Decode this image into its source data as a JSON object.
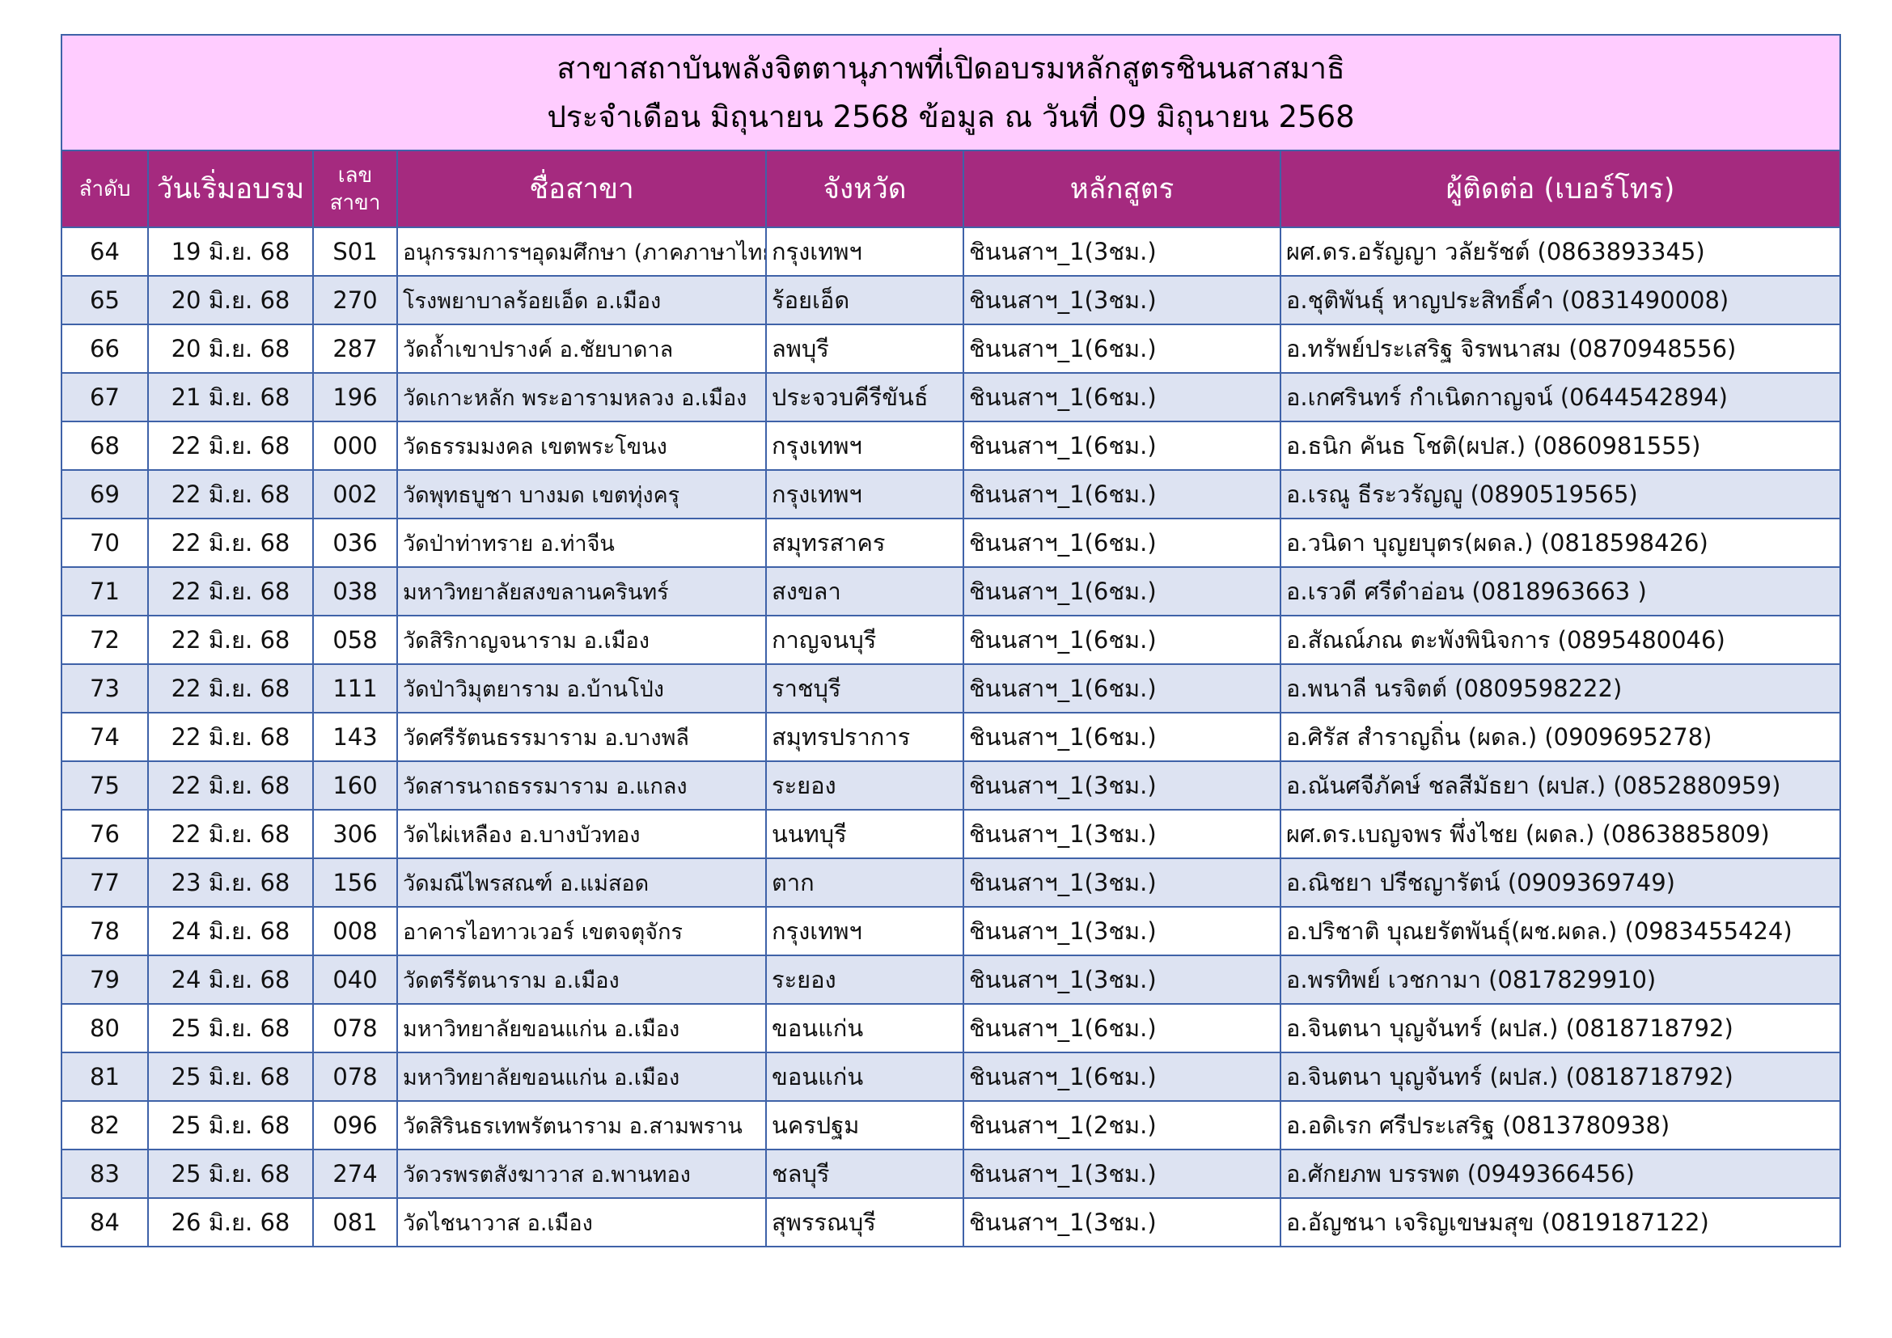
{
  "title": [
    "สาขาสถาบันพลังจิตตานุภาพที่เปิดอบรมหลักสูตรชินนสาสมาธิ",
    "ประจำเดือน มิถุนายน 2568 ข้อมูล ณ วันที่ 09 มิถุนายน 2568"
  ],
  "table": {
    "headers": [
      "ลำดับ",
      "วันเริ่มอบรม",
      "เลข สาขา",
      "ชื่อสาขา",
      "จังหวัด",
      "หลักสูตร",
      "ผู้ติดต่อ (เบอร์โทร)"
    ],
    "rows": [
      [
        "64",
        "19 มิ.ย. 68",
        "S01",
        "อนุกรรมการฯอุดมศึกษา (ภาคภาษาไทย)",
        "กรุงเทพฯ",
        "ชินนสาฯ_1(3ชม.)",
        "ผศ.ดร.อรัญญา  วลัยรัชต์ (0863893345)"
      ],
      [
        "65",
        "20 มิ.ย. 68",
        "270",
        "โรงพยาบาลร้อยเอ็ด อ.เมือง",
        "ร้อยเอ็ด",
        "ชินนสาฯ_1(3ชม.)",
        "อ.ชุติพันธุ์  หาญประสิทธิ์คำ (0831490008)"
      ],
      [
        "66",
        "20 มิ.ย. 68",
        "287",
        "วัดถ้ำเขาปรางค์ อ.ชัยบาดาล",
        "ลพบุรี",
        "ชินนสาฯ_1(6ชม.)",
        "อ.ทรัพย์ประเสริฐ จิรพนาสม (0870948556)"
      ],
      [
        "67",
        "21 มิ.ย. 68",
        "196",
        "วัดเกาะหลัก พระอารามหลวง อ.เมือง",
        "ประจวบคีรีขันธ์",
        "ชินนสาฯ_1(6ชม.)",
        "อ.เกศรินทร์ กำเนิดกาญจน์  (0644542894)"
      ],
      [
        "68",
        "22 มิ.ย. 68",
        "000",
        "วัดธรรมมงคล เขตพระโขนง",
        "กรุงเทพฯ",
        "ชินนสาฯ_1(6ชม.)",
        "อ.ธนิก  คันธ โชติ(ผปส.) (0860981555)"
      ],
      [
        "69",
        "22 มิ.ย. 68",
        "002",
        "วัดพุทธบูชา บางมด เขตทุ่งครุ",
        "กรุงเทพฯ",
        "ชินนสาฯ_1(6ชม.)",
        "อ.เรณู ธีระวรัญญู (0890519565)"
      ],
      [
        "70",
        "22 มิ.ย. 68",
        "036",
        "วัดป่าท่าทราย อ.ท่าจีน",
        "สมุทรสาคร",
        "ชินนสาฯ_1(6ชม.)",
        "อ.วนิดา บุญยบุตร(ผดล.) (0818598426)"
      ],
      [
        "71",
        "22 มิ.ย. 68",
        "038",
        "มหาวิทยาลัยสงขลานครินทร์",
        "สงขลา",
        "ชินนสาฯ_1(6ชม.)",
        "อ.เรวดี ศรีดำอ่อน  (0818963663 )"
      ],
      [
        "72",
        "22 มิ.ย. 68",
        "058",
        "วัดสิริกาญจนาราม อ.เมือง",
        "กาญจนบุรี",
        "ชินนสาฯ_1(6ชม.)",
        "อ.สัณณ์ภณ ตะพังพินิจการ (0895480046)"
      ],
      [
        "73",
        "22 มิ.ย. 68",
        "111",
        "วัดป่าวิมุตยาราม อ.บ้านโป่ง",
        "ราชบุรี",
        "ชินนสาฯ_1(6ชม.)",
        "อ.พนาลี นรจิตต์ (0809598222)"
      ],
      [
        "74",
        "22 มิ.ย. 68",
        "143",
        "วัดศรีรัตนธรรมาราม อ.บางพลี",
        "สมุทรปราการ",
        "ชินนสาฯ_1(6ชม.)",
        "อ.ศิรัส สำราญถิ่น (ผดล.) (0909695278)"
      ],
      [
        "75",
        "22 มิ.ย. 68",
        "160",
        "วัดสารนาถธรรมาราม อ.แกลง",
        "ระยอง",
        "ชินนสาฯ_1(3ชม.)",
        "อ.ณันศจีภัคษ์ ชลสีมัธยา (ผปส.) (0852880959)"
      ],
      [
        "76",
        "22 มิ.ย. 68",
        "306",
        "วัดไผ่เหลือง อ.บางบัวทอง",
        "นนทบุรี",
        "ชินนสาฯ_1(3ชม.)",
        "ผศ.ดร.เบญจพร พึ่งไชย (ผดล.) (0863885809)"
      ],
      [
        "77",
        "23 มิ.ย. 68",
        "156",
        "วัดมณีไพรสณฑ์ อ.แม่สอด",
        "ตาก",
        "ชินนสาฯ_1(3ชม.)",
        "อ.ณิชยา  ปรีชญารัตน์ (0909369749)"
      ],
      [
        "78",
        "24 มิ.ย. 68",
        "008",
        "อาคารไอทาวเวอร์ เขตจตุจักร",
        "กรุงเทพฯ",
        "ชินนสาฯ_1(3ชม.)",
        "อ.ปริชาติ บุณยรัตพันธุ์(ผช.ผดล.) (0983455424)"
      ],
      [
        "79",
        "24 มิ.ย. 68",
        "040",
        "วัดตรีรัตนาราม อ.เมือง",
        "ระยอง",
        "ชินนสาฯ_1(3ชม.)",
        "อ.พรทิพย์ เวชกามา (0817829910)"
      ],
      [
        "80",
        "25 มิ.ย. 68",
        "078",
        "มหาวิทยาลัยขอนแก่น อ.เมือง",
        "ขอนแก่น",
        "ชินนสาฯ_1(6ชม.)",
        "อ.จินตนา บุญจันทร์ (ผปส.) (0818718792)"
      ],
      [
        "81",
        "25 มิ.ย. 68",
        "078",
        "มหาวิทยาลัยขอนแก่น อ.เมือง",
        "ขอนแก่น",
        "ชินนสาฯ_1(6ชม.)",
        "อ.จินตนา บุญจันทร์ (ผปส.) (0818718792)"
      ],
      [
        "82",
        "25 มิ.ย. 68",
        "096",
        "วัดสิรินธรเทพรัตนาราม อ.สามพราน",
        "นครปฐม",
        "ชินนสาฯ_1(2ชม.)",
        "อ.อดิเรก ศรีประเสริฐ  (0813780938)"
      ],
      [
        "83",
        "25 มิ.ย. 68",
        "274",
        "วัดวรพรตสังฆาวาส อ.พานทอง",
        "ชลบุรี",
        "ชินนสาฯ_1(3ชม.)",
        "อ.ศักยภพ บรรพต (0949366456)"
      ],
      [
        "84",
        "26 มิ.ย. 68",
        "081",
        "วัดไชนาวาส อ.เมือง",
        "สุพรรณบุรี",
        "ชินนสาฯ_1(3ชม.)",
        "อ.อัญชนา เจริญเขษมสุข (0819187122)"
      ]
    ]
  }
}
